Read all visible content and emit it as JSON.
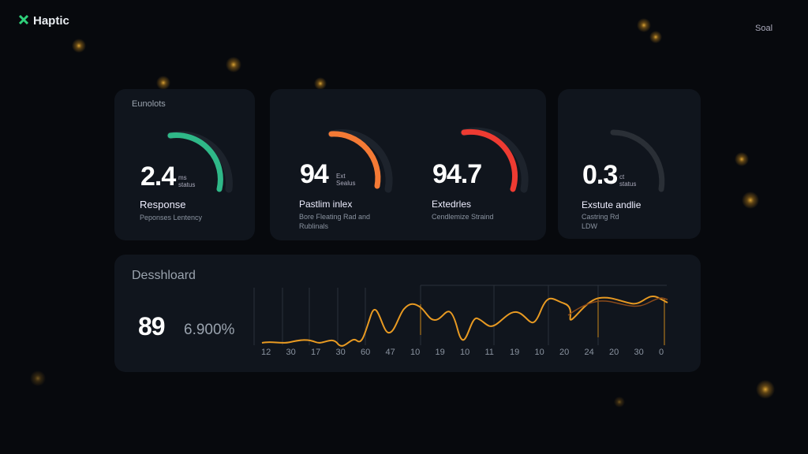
{
  "header": {
    "brand": "Haptic",
    "action": "Soal"
  },
  "cards": [
    {
      "panel": "Eunolots",
      "value": "2.4",
      "unit": "ms",
      "unit2": "status",
      "title": "Response",
      "subtitle": "Peponses Lentency"
    },
    {
      "value": "94",
      "unit": "Ext",
      "unit2": "Sealus",
      "title": "Pastlim inlex",
      "subtitle": "Bore Fleating Rad and",
      "subtitle2": "Rublinals"
    },
    {
      "value": "94.7",
      "title": "Extedrles",
      "subtitle": "Cendlemize Straind"
    },
    {
      "value": "0.3",
      "unit": "ct",
      "unit2": "status",
      "title": "Exstute andlie",
      "subtitle": "Castring Rd",
      "subtitle2": "LDW"
    }
  ],
  "dashboard": {
    "title": "Desshloard",
    "value": "89",
    "change": "6.900%",
    "x_labels": [
      "12",
      "30",
      "17",
      "30",
      "60",
      "47",
      "10",
      "19",
      "10",
      "11",
      "19",
      "10",
      "20",
      "24",
      "20",
      "30",
      "0"
    ]
  }
}
